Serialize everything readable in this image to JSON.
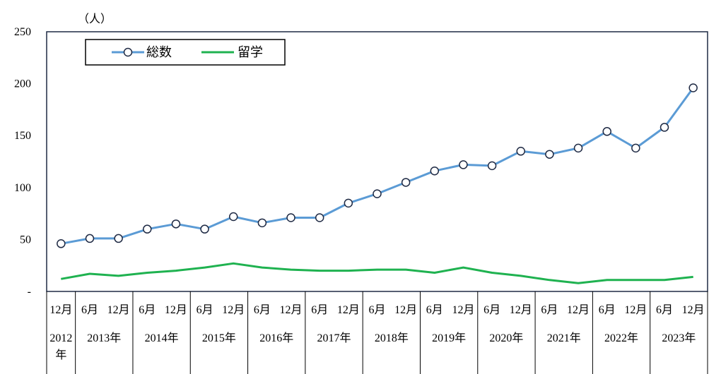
{
  "chart_data": {
    "type": "line",
    "unit_label": "（人）",
    "yticks": [
      "250",
      "200",
      "150",
      "100",
      "50",
      "-"
    ],
    "ylim": [
      0,
      250
    ],
    "grid": false,
    "legend_position": "top-left",
    "x_months": [
      "12月",
      "6月",
      "12月",
      "6月",
      "12月",
      "6月",
      "12月",
      "6月",
      "12月",
      "6月",
      "12月",
      "6月",
      "12月",
      "6月",
      "12月",
      "6月",
      "12月",
      "6月",
      "12月",
      "6月",
      "12月",
      "6月",
      "12月"
    ],
    "x_years": [
      {
        "label": "2012年",
        "span": 1
      },
      {
        "label": "2013年",
        "span": 2
      },
      {
        "label": "2014年",
        "span": 2
      },
      {
        "label": "2015年",
        "span": 2
      },
      {
        "label": "2016年",
        "span": 2
      },
      {
        "label": "2017年",
        "span": 2
      },
      {
        "label": "2018年",
        "span": 2
      },
      {
        "label": "2019年",
        "span": 2
      },
      {
        "label": "2020年",
        "span": 2
      },
      {
        "label": "2021年",
        "span": 2
      },
      {
        "label": "2022年",
        "span": 2
      },
      {
        "label": "2023年",
        "span": 2
      }
    ],
    "series": [
      {
        "name": "総数",
        "color": "#5b9bd5",
        "marker": "circle",
        "values": [
          46,
          51,
          51,
          60,
          65,
          60,
          72,
          66,
          71,
          71,
          85,
          94,
          105,
          116,
          122,
          121,
          135,
          132,
          138,
          154,
          138,
          158,
          196
        ]
      },
      {
        "name": "留学",
        "color": "#1fb250",
        "marker": "none",
        "values": [
          12,
          17,
          15,
          18,
          20,
          23,
          27,
          23,
          21,
          20,
          20,
          21,
          21,
          18,
          23,
          18,
          15,
          11,
          8,
          11,
          11,
          11,
          14
        ]
      }
    ]
  }
}
